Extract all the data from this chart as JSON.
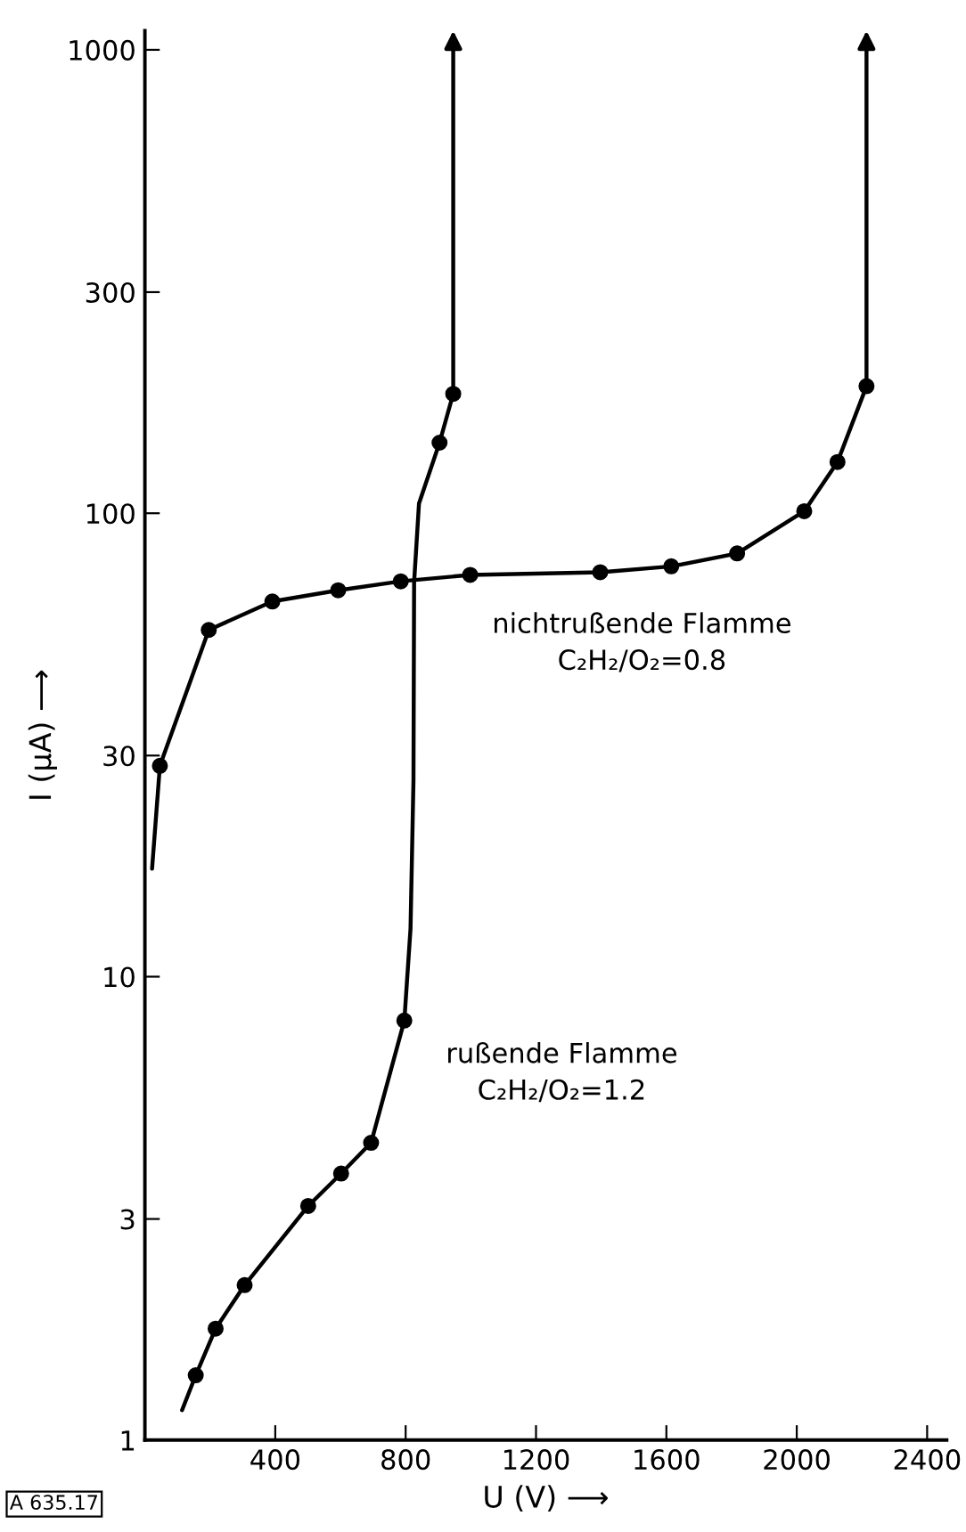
{
  "chart_data": {
    "type": "line",
    "xlabel": "U (V) ⟶",
    "ylabel": "I (µA) ⟶",
    "log": "y",
    "xlim": [
      0,
      2460
    ],
    "ylim": [
      1,
      1100
    ],
    "xticks": [
      {
        "value": 0,
        "label": null
      },
      400,
      800,
      1200,
      1600,
      2000,
      2400
    ],
    "yticks": [
      1,
      3,
      10,
      30,
      100,
      300,
      1000
    ],
    "grid": false,
    "legend": false,
    "series": [
      {
        "color": "#000000",
        "marker": "none",
        "line_style": "solid",
        "x": [
          114,
          156,
          217,
          306,
          501,
          602,
          694,
          796,
          815,
          824,
          826,
          841,
          904,
          946
        ],
        "values": [
          1.16,
          1.38,
          1.74,
          2.16,
          3.2,
          3.76,
          4.38,
          8.04,
          12.7,
          26.5,
          71,
          105,
          142,
          181
        ]
      },
      {
        "type": "scatter",
        "color": "#000000",
        "marker": "circle",
        "x": [
          156,
          217,
          306,
          501,
          602,
          694,
          796,
          904,
          946
        ],
        "values": [
          1.38,
          1.74,
          2.16,
          3.2,
          3.76,
          4.38,
          8.04,
          142,
          181
        ]
      },
      {
        "color": "#000000",
        "marker": "none",
        "line_style": "solid",
        "x": [
          22,
          46,
          196,
          391,
          593,
          785,
          998,
          1397,
          1615,
          1817,
          2023,
          2125,
          2214
        ],
        "values": [
          17.1,
          28.5,
          56,
          64.5,
          68.2,
          71.3,
          73.6,
          74.6,
          76.8,
          81.9,
          101,
          129,
          188
        ]
      },
      {
        "type": "scatter",
        "color": "#000000",
        "marker": "circle",
        "x": [
          46,
          196,
          391,
          593,
          785,
          998,
          1397,
          1615,
          1817,
          2023,
          2125,
          2214
        ],
        "values": [
          28.5,
          56,
          64.5,
          68.2,
          71.3,
          73.6,
          74.6,
          76.8,
          81.9,
          101,
          129,
          188
        ]
      }
    ],
    "annotations": [
      "nichtrußende Flamme\nC₂H₂/O₂=0.8",
      "rußende Flamme\nC₂H₂/O₂=1.2",
      "A 635.17"
    ]
  }
}
